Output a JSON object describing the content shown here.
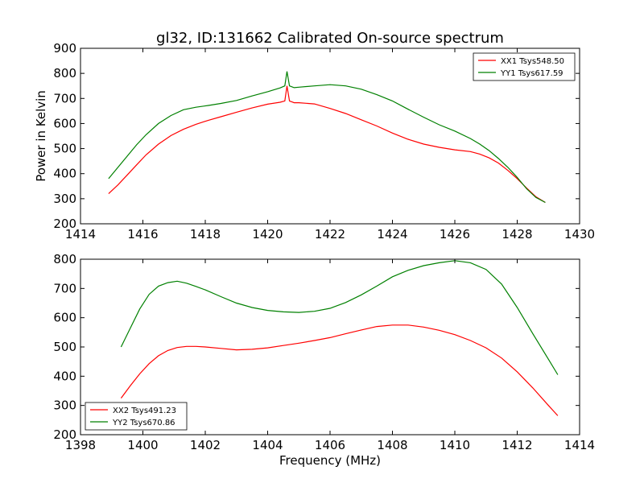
{
  "title": "gl32, ID:131662 Calibrated On-source spectrum",
  "chart_data": [
    {
      "type": "line",
      "ylabel": "Power in Kelvin",
      "xlabel": "",
      "xlim": [
        1414,
        1430
      ],
      "ylim": [
        200,
        900
      ],
      "xticks": [
        "1414",
        "1416",
        "1418",
        "1420",
        "1422",
        "1424",
        "1426",
        "1428",
        "1430"
      ],
      "yticks": [
        "200",
        "300",
        "400",
        "500",
        "600",
        "700",
        "800",
        "900"
      ],
      "legend_position": "top-right",
      "series": [
        {
          "name": "XX1 Tsys548.50",
          "color": "#ff0000",
          "x": [
            1414.9,
            1415.2,
            1415.5,
            1415.8,
            1416.1,
            1416.5,
            1416.9,
            1417.3,
            1417.7,
            1418.1,
            1418.5,
            1419.0,
            1419.5,
            1420.0,
            1420.4,
            1420.55,
            1420.62,
            1420.7,
            1420.85,
            1421.0,
            1421.5,
            1422.0,
            1422.5,
            1423.0,
            1423.5,
            1424.0,
            1424.5,
            1425.0,
            1425.5,
            1426.0,
            1426.5,
            1426.8,
            1427.1,
            1427.4,
            1427.7,
            1428.0,
            1428.3,
            1428.6,
            1428.9
          ],
          "y": [
            320,
            355,
            395,
            435,
            475,
            518,
            552,
            577,
            597,
            613,
            627,
            645,
            662,
            677,
            685,
            690,
            750,
            690,
            683,
            683,
            678,
            660,
            640,
            615,
            590,
            562,
            537,
            518,
            505,
            495,
            488,
            478,
            463,
            442,
            413,
            380,
            343,
            308,
            285
          ]
        },
        {
          "name": "YY1 Tsys617.59",
          "color": "#008000",
          "x": [
            1414.9,
            1415.2,
            1415.5,
            1415.8,
            1416.1,
            1416.5,
            1416.9,
            1417.3,
            1417.7,
            1418.1,
            1418.5,
            1419.0,
            1419.5,
            1420.0,
            1420.4,
            1420.55,
            1420.62,
            1420.7,
            1420.85,
            1421.0,
            1421.5,
            1422.0,
            1422.5,
            1423.0,
            1423.5,
            1424.0,
            1424.5,
            1425.0,
            1425.5,
            1426.0,
            1426.5,
            1426.8,
            1427.1,
            1427.4,
            1427.7,
            1428.0,
            1428.3,
            1428.6,
            1428.9
          ],
          "y": [
            380,
            425,
            470,
            515,
            555,
            600,
            632,
            655,
            665,
            672,
            680,
            692,
            710,
            727,
            742,
            750,
            808,
            750,
            743,
            745,
            750,
            755,
            750,
            737,
            715,
            690,
            657,
            625,
            595,
            570,
            540,
            518,
            492,
            460,
            425,
            385,
            340,
            305,
            285
          ]
        }
      ]
    },
    {
      "type": "line",
      "ylabel": "",
      "xlabel": "Frequency (MHz)",
      "xlim": [
        1398,
        1414
      ],
      "ylim": [
        200,
        800
      ],
      "xticks": [
        "1398",
        "1400",
        "1402",
        "1404",
        "1406",
        "1408",
        "1410",
        "1412",
        "1414"
      ],
      "yticks": [
        "200",
        "300",
        "400",
        "500",
        "600",
        "700",
        "800"
      ],
      "legend_position": "bottom-left",
      "series": [
        {
          "name": "XX2 Tsys491.23",
          "color": "#ff0000",
          "x": [
            1399.3,
            1399.6,
            1399.9,
            1400.2,
            1400.5,
            1400.8,
            1401.1,
            1401.4,
            1401.7,
            1402.0,
            1402.5,
            1403.0,
            1403.5,
            1404.0,
            1404.5,
            1405.0,
            1405.5,
            1406.0,
            1406.5,
            1407.0,
            1407.5,
            1408.0,
            1408.5,
            1409.0,
            1409.5,
            1410.0,
            1410.5,
            1411.0,
            1411.5,
            1412.0,
            1412.5,
            1413.0,
            1413.3
          ],
          "y": [
            325,
            368,
            408,
            443,
            470,
            488,
            498,
            502,
            502,
            500,
            495,
            490,
            492,
            497,
            505,
            513,
            522,
            532,
            545,
            558,
            570,
            575,
            575,
            568,
            557,
            542,
            522,
            497,
            462,
            415,
            360,
            300,
            265
          ]
        },
        {
          "name": "YY2 Tsys670.86",
          "color": "#008000",
          "x": [
            1399.3,
            1399.6,
            1399.9,
            1400.2,
            1400.5,
            1400.8,
            1401.1,
            1401.4,
            1401.7,
            1402.0,
            1402.5,
            1403.0,
            1403.5,
            1404.0,
            1404.5,
            1405.0,
            1405.5,
            1406.0,
            1406.5,
            1407.0,
            1407.5,
            1408.0,
            1408.5,
            1409.0,
            1409.5,
            1410.0,
            1410.5,
            1411.0,
            1411.5,
            1412.0,
            1412.5,
            1413.0,
            1413.3
          ],
          "y": [
            500,
            565,
            630,
            680,
            708,
            720,
            725,
            718,
            707,
            695,
            672,
            650,
            635,
            625,
            620,
            618,
            622,
            632,
            652,
            678,
            708,
            740,
            762,
            778,
            788,
            795,
            788,
            765,
            715,
            635,
            545,
            458,
            405
          ]
        }
      ]
    }
  ]
}
